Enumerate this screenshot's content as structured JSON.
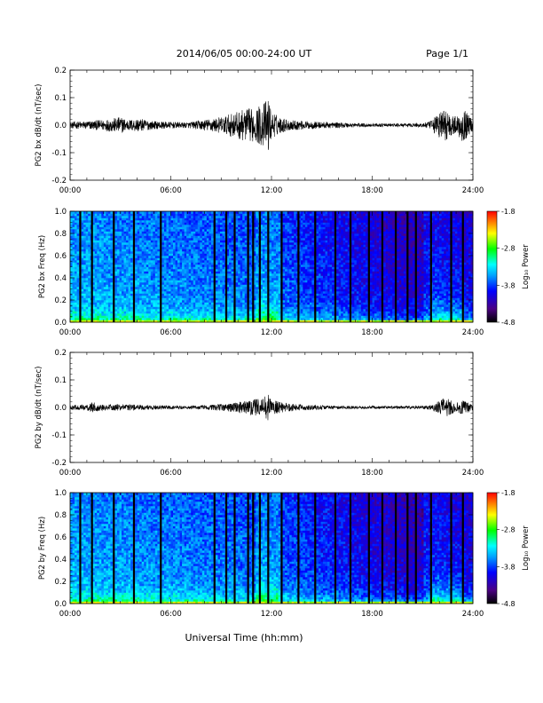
{
  "header": {
    "title": "2014/06/05  00:00-24:00 UT",
    "page": "Page 1/1"
  },
  "footer": {
    "xlabel": "Universal Time (hh:mm)"
  },
  "chart_data": [
    {
      "type": "line",
      "panel": "bx-dbdt",
      "ylabel": "PG2 bx dB/dt (nT/sec)",
      "ylim": [
        -0.2,
        0.2
      ],
      "yticks": [
        "-0.2",
        "-0.1",
        "0.0",
        "0.1",
        "0.2"
      ],
      "xlim": [
        0,
        24
      ],
      "xticks": [
        "00:00",
        "06:00",
        "12:00",
        "18:00",
        "24:00"
      ],
      "envelope_hours": [
        0,
        1,
        2,
        2.5,
        3,
        3.5,
        4,
        4.5,
        5,
        6,
        7,
        8,
        8.5,
        9,
        9.5,
        10,
        10.5,
        11,
        11.5,
        11.8,
        12,
        12.5,
        13,
        14,
        15,
        16,
        17,
        18,
        19,
        20,
        21,
        21.5,
        22,
        22.3,
        22.5,
        23,
        23.3,
        23.6,
        24
      ],
      "envelope_amplitude": [
        0.012,
        0.015,
        0.02,
        0.025,
        0.03,
        0.02,
        0.025,
        0.02,
        0.015,
        0.012,
        0.01,
        0.02,
        0.025,
        0.03,
        0.04,
        0.05,
        0.06,
        0.06,
        0.08,
        0.1,
        0.05,
        0.03,
        0.02,
        0.015,
        0.012,
        0.01,
        0.008,
        0.006,
        0.006,
        0.006,
        0.008,
        0.015,
        0.05,
        0.06,
        0.05,
        0.03,
        0.06,
        0.05,
        0.02
      ]
    },
    {
      "type": "heatmap",
      "panel": "bx-spectrogram",
      "ylabel": "PG2 bx Freq (Hz)",
      "ylim": [
        0.0,
        1.0
      ],
      "yticks": [
        "0.0",
        "0.2",
        "0.4",
        "0.6",
        "0.8",
        "1.0"
      ],
      "xlim": [
        0,
        24
      ],
      "xticks": [
        "00:00",
        "06:00",
        "12:00",
        "18:00",
        "24:00"
      ],
      "colorbar_label": "Log₁₀ Power",
      "colorbar_range": [
        -4.8,
        -1.8
      ],
      "colorbar_ticks": [
        "-1.8",
        "-2.8",
        "-3.8",
        "-4.8"
      ],
      "gap_hours": [
        0.6,
        1.3,
        2.6,
        3.8,
        5.4,
        8.6,
        9.3,
        9.8,
        10.6,
        10.9,
        11.3,
        11.8,
        12.6,
        13.6,
        14.6,
        15.8,
        16.7,
        17.8,
        18.6,
        19.4,
        20.1,
        20.6,
        21.5,
        22.7,
        23.4
      ]
    },
    {
      "type": "line",
      "panel": "by-dbdt",
      "ylabel": "PG2 by dB/dt (nT/sec)",
      "ylim": [
        -0.2,
        0.2
      ],
      "yticks": [
        "-0.2",
        "-0.1",
        "0.0",
        "0.1",
        "0.2"
      ],
      "xlim": [
        0,
        24
      ],
      "xticks": [
        "00:00",
        "06:00",
        "12:00",
        "18:00",
        "24:00"
      ],
      "envelope_hours": [
        0,
        1,
        1.3,
        1.6,
        2,
        3,
        4,
        5,
        6,
        7,
        8,
        9,
        10,
        10.5,
        11,
        11.5,
        11.8,
        12,
        12.5,
        13,
        14,
        15,
        16,
        17,
        18,
        19,
        20,
        21,
        21.5,
        22,
        22.3,
        22.6,
        23,
        23.3,
        23.7,
        24
      ],
      "envelope_amplitude": [
        0.008,
        0.01,
        0.02,
        0.015,
        0.01,
        0.012,
        0.01,
        0.008,
        0.007,
        0.006,
        0.008,
        0.012,
        0.02,
        0.025,
        0.03,
        0.035,
        0.06,
        0.03,
        0.02,
        0.015,
        0.01,
        0.008,
        0.006,
        0.005,
        0.005,
        0.005,
        0.005,
        0.006,
        0.01,
        0.025,
        0.035,
        0.03,
        0.015,
        0.03,
        0.02,
        0.01
      ]
    },
    {
      "type": "heatmap",
      "panel": "by-spectrogram",
      "ylabel": "PG2 by Freq (Hz)",
      "ylim": [
        0.0,
        1.0
      ],
      "yticks": [
        "0.0",
        "0.2",
        "0.4",
        "0.6",
        "0.8",
        "1.0"
      ],
      "xlim": [
        0,
        24
      ],
      "xticks": [
        "00:00",
        "06:00",
        "12:00",
        "18:00",
        "24:00"
      ],
      "colorbar_label": "Log₁₀ Power",
      "colorbar_range": [
        -4.8,
        -1.8
      ],
      "colorbar_ticks": [
        "-1.8",
        "-2.8",
        "-3.8",
        "-4.8"
      ],
      "gap_hours": [
        0.6,
        1.3,
        2.6,
        3.8,
        5.4,
        8.6,
        9.3,
        9.8,
        10.6,
        10.9,
        11.3,
        11.8,
        12.6,
        13.6,
        14.6,
        15.8,
        16.7,
        17.8,
        18.6,
        19.4,
        20.1,
        20.6,
        21.5,
        22.7,
        23.4
      ]
    }
  ]
}
